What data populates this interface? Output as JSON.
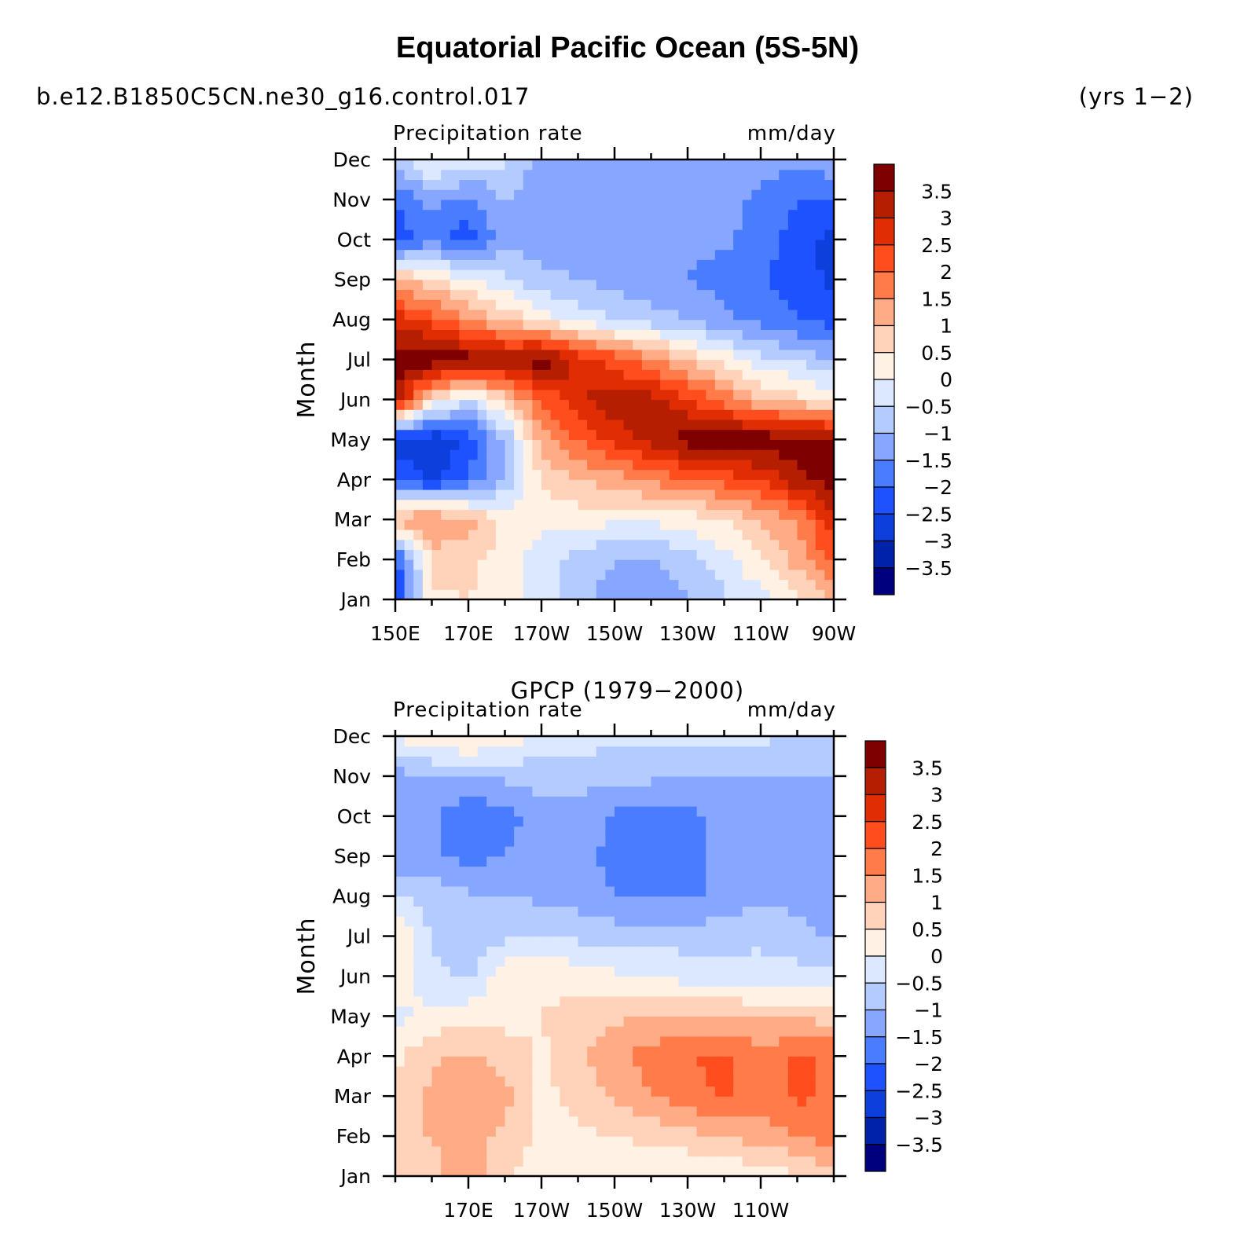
{
  "title": "Equatorial Pacific Ocean (5S-5N)",
  "case_name": "b.e12.B1850C5CN.ne30_g16.control.017",
  "years": "(yrs 1−2)",
  "chart_data": [
    {
      "type": "heatmap",
      "panel": "model",
      "title": "",
      "left_string": "Precipitation rate",
      "right_string": "mm/day",
      "ylabel": "Month",
      "xlabel": "",
      "x": [
        150,
        160,
        170,
        180,
        190,
        200,
        210,
        220,
        230,
        240,
        250,
        260,
        270
      ],
      "xlim": [
        150,
        270
      ],
      "xticks": [
        150,
        170,
        190,
        210,
        230,
        250,
        270
      ],
      "xtick_labels": [
        "150E",
        "170E",
        "170W",
        "150W",
        "130W",
        "110W",
        "90W"
      ],
      "y": [
        "Jan",
        "Feb",
        "Mar",
        "Apr",
        "May",
        "Jun",
        "Jul",
        "Aug",
        "Sep",
        "Oct",
        "Nov",
        "Dec"
      ],
      "values": [
        [
          -2.6,
          0.4,
          0.5,
          0.2,
          -0.3,
          -0.8,
          -1.3,
          -1.5,
          -1.1,
          -0.6,
          -0.2,
          0.3,
          1.0
        ],
        [
          -2.3,
          0.7,
          0.6,
          0.3,
          -0.3,
          -0.7,
          -1.0,
          -1.0,
          -0.7,
          -0.2,
          0.5,
          1.2,
          2.2
        ],
        [
          1.3,
          1.6,
          1.2,
          0.4,
          0.2,
          0.2,
          0.1,
          0.1,
          0.2,
          0.5,
          1.0,
          1.6,
          2.8
        ],
        [
          -2.0,
          -2.6,
          -2.0,
          -0.9,
          0.6,
          1.0,
          1.2,
          1.6,
          1.9,
          2.2,
          2.6,
          3.3,
          3.8
        ],
        [
          -2.8,
          -3.0,
          -2.4,
          -1.0,
          1.2,
          2.0,
          2.7,
          3.2,
          3.8,
          3.9,
          3.9,
          3.8,
          3.8
        ],
        [
          3.6,
          0.5,
          -0.5,
          0.8,
          2.0,
          2.9,
          3.3,
          3.2,
          2.6,
          1.8,
          1.0,
          0.7,
          0.2
        ],
        [
          3.8,
          3.9,
          3.8,
          3.4,
          3.9,
          2.9,
          2.3,
          1.6,
          0.9,
          0.3,
          -0.3,
          -0.6,
          -1.0
        ],
        [
          2.8,
          2.3,
          1.5,
          0.9,
          0.3,
          -0.2,
          -0.5,
          -0.8,
          -1.0,
          -1.4,
          -1.7,
          -2.0,
          -2.2
        ],
        [
          1.1,
          0.6,
          0.1,
          -0.4,
          -0.8,
          -1.0,
          -1.2,
          -1.4,
          -1.5,
          -1.7,
          -1.9,
          -2.3,
          -2.6
        ],
        [
          -2.4,
          -1.7,
          -2.3,
          -1.1,
          -1.3,
          -1.4,
          -1.4,
          -1.4,
          -1.4,
          -1.4,
          -1.7,
          -2.3,
          -2.7
        ],
        [
          -2.0,
          -1.3,
          -1.7,
          -1.0,
          -1.3,
          -1.4,
          -1.4,
          -1.4,
          -1.4,
          -1.4,
          -1.6,
          -2.0,
          -2.1
        ],
        [
          -0.7,
          0.2,
          -0.2,
          -0.4,
          -1.3,
          -1.3,
          -1.3,
          -1.3,
          -1.3,
          -1.2,
          -1.3,
          -1.3,
          -1.1
        ]
      ],
      "colorbar_levels": [
        "3.5",
        "3",
        "2.5",
        "2",
        "1.5",
        "1",
        "0.5",
        "0",
        "−0.5",
        "−1",
        "−1.5",
        "−2",
        "−2.5",
        "−3",
        "−3.5"
      ],
      "colorbar_range": [
        -4,
        4
      ]
    },
    {
      "type": "heatmap",
      "panel": "obs",
      "title": "GPCP (1979−2000)",
      "left_string": "Precipitation rate",
      "right_string": "mm/day",
      "ylabel": "Month",
      "xlabel": "",
      "x": [
        150,
        160,
        170,
        180,
        190,
        200,
        210,
        220,
        230,
        240,
        250,
        260,
        270
      ],
      "xlim": [
        150,
        270
      ],
      "xticks": [
        170,
        190,
        210,
        230,
        250
      ],
      "xtick_labels": [
        "170E",
        "170W",
        "150W",
        "130W",
        "110W"
      ],
      "y": [
        "Jan",
        "Feb",
        "Mar",
        "Apr",
        "May",
        "Jun",
        "Jul",
        "Aug",
        "Sep",
        "Oct",
        "Nov",
        "Dec"
      ],
      "values": [
        [
          0.8,
          0.9,
          1.3,
          0.6,
          0.2,
          0.1,
          0.1,
          0.1,
          0.0,
          0.1,
          0.2,
          0.4,
          0.8
        ],
        [
          1.0,
          1.0,
          1.2,
          0.9,
          0.3,
          0.4,
          0.5,
          0.6,
          0.8,
          1.0,
          1.2,
          1.5,
          1.8
        ],
        [
          0.6,
          1.1,
          1.4,
          1.2,
          0.3,
          0.7,
          1.1,
          1.5,
          1.8,
          2.1,
          1.8,
          2.1,
          1.9
        ],
        [
          0.4,
          0.9,
          1.1,
          0.8,
          0.4,
          0.9,
          1.4,
          1.7,
          2.0,
          2.1,
          1.7,
          2.1,
          1.9
        ],
        [
          -0.2,
          0.2,
          0.3,
          0.3,
          0.5,
          0.7,
          0.9,
          1.0,
          1.1,
          1.1,
          0.9,
          0.9,
          0.8
        ],
        [
          0.5,
          -0.4,
          -0.6,
          0.4,
          0.4,
          0.3,
          0.1,
          0.0,
          -0.2,
          -0.3,
          -0.3,
          -0.3,
          -0.3
        ],
        [
          0.6,
          -0.6,
          -0.8,
          -0.6,
          -0.5,
          -0.6,
          -0.7,
          -0.7,
          -0.7,
          -0.7,
          -0.6,
          -0.8,
          -1.1
        ],
        [
          -0.4,
          -0.7,
          -0.9,
          -1.0,
          -1.1,
          -1.2,
          -1.5,
          -1.6,
          -1.6,
          -1.4,
          -1.1,
          -1.2,
          -1.3
        ],
        [
          -1.5,
          -1.4,
          -1.7,
          -1.5,
          -1.3,
          -1.4,
          -1.6,
          -1.6,
          -1.6,
          -1.4,
          -1.1,
          -1.1,
          -1.2
        ],
        [
          -1.3,
          -1.4,
          -2.0,
          -1.7,
          -1.2,
          -1.1,
          -1.6,
          -1.7,
          -1.7,
          -1.3,
          -1.0,
          -1.1,
          -1.2
        ],
        [
          -1.2,
          -1.0,
          -1.0,
          -0.9,
          -0.8,
          -0.9,
          -0.9,
          -0.9,
          -1.0,
          -1.0,
          -1.0,
          -1.0,
          -1.0
        ],
        [
          0.1,
          0.4,
          0.7,
          0.3,
          -0.1,
          -0.2,
          -0.3,
          -0.3,
          -0.3,
          -0.4,
          -0.4,
          -0.6,
          -0.8
        ]
      ],
      "colorbar_levels": [
        "3.5",
        "3",
        "2.5",
        "2",
        "1.5",
        "1",
        "0.5",
        "0",
        "−0.5",
        "−1",
        "−1.5",
        "−2",
        "−2.5",
        "−3",
        "−3.5"
      ],
      "colorbar_range": [
        -4,
        4
      ]
    }
  ],
  "palette": [
    "#00007f",
    "#0022aa",
    "#0d3fdd",
    "#1f52ff",
    "#4a7cff",
    "#86a6ff",
    "#b4cbff",
    "#dbe8ff",
    "#fff1e3",
    "#ffd2b9",
    "#ffab86",
    "#ff7b4a",
    "#ff4d1d",
    "#e02d04",
    "#b51e00",
    "#7e0000"
  ]
}
